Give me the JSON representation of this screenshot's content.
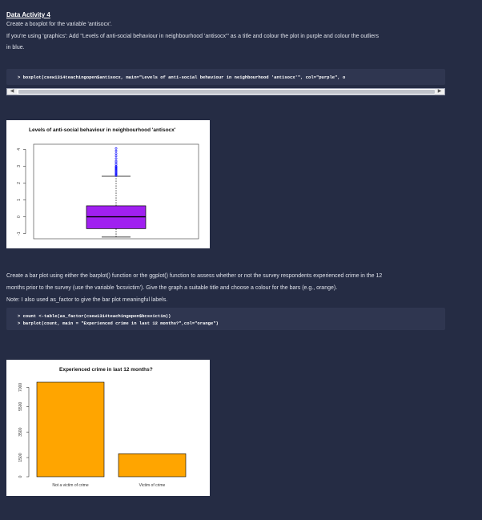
{
  "activity": {
    "title": "Data Activity 4",
    "line1": "Create a boxplot for the variable 'antisocx'.",
    "line2": "If you're using 'graphics': Add \"Levels of anti-social behaviour in neighbourhood 'antisocx'\" as a title and colour the plot in purple and colour the outliers",
    "line3": "in blue."
  },
  "code1": {
    "line": "> boxplot(csew1314teachingopen$antisocx, main=\"Levels of anti-social behaviour in neighbourhood 'antisocx'\", col=\"purple\", o"
  },
  "scroll": {
    "left_arrow": "◀",
    "right_arrow": "▶"
  },
  "section2": {
    "line1": "Create a bar plot using either the barplot() function or the ggplot() function to assess whether or not the survey respondents experienced crime in the 12",
    "line2": "months prior to the survey (use the variable 'bcsvictim'). Give the graph a suitable title and choose a colour for the bars (e.g., orange).",
    "line3": "Note: I also used as_factor to give the bar plot meaningful labels."
  },
  "code2": {
    "line1": "> count <-table(as_factor(csew1314teachingopen$bcsvictim))",
    "line2": "> barplot(count, main = \"Experienced crime in last 12 months?\",col=\"orange\")"
  },
  "chart_data": [
    {
      "type": "box",
      "title": "Levels of anti-social behaviour in neighbourhood 'antisocx'",
      "ytick_labels": [
        "-1",
        "0",
        "1",
        "2",
        "3",
        "4"
      ],
      "ylim": [
        -1.3,
        4.3
      ],
      "box": {
        "whisker_low": -1.2,
        "q1": -0.7,
        "median": 0.0,
        "q3": 0.65,
        "whisker_high": 2.4
      },
      "outliers": [
        2.45,
        2.5,
        2.55,
        2.6,
        2.65,
        2.7,
        2.75,
        2.8,
        2.85,
        2.9,
        2.95,
        3.0,
        3.1,
        3.2,
        3.3,
        3.45,
        3.6,
        3.75,
        3.9,
        4.05
      ],
      "colors": {
        "box": "#a020f0",
        "outliers": "#0000ff"
      }
    },
    {
      "type": "bar",
      "title": "Experienced crime in last 12 months?",
      "categories": [
        "Not a victim of crime",
        "Victim of crime"
      ],
      "values": [
        7400,
        1800
      ],
      "ytick_labels": [
        "0",
        "1500",
        "3500",
        "5500",
        "7000"
      ],
      "ytick_values": [
        0,
        1500,
        3500,
        5500,
        7000
      ],
      "ylim": [
        0,
        7400
      ],
      "colors": {
        "bars": "#ffa500"
      }
    }
  ]
}
